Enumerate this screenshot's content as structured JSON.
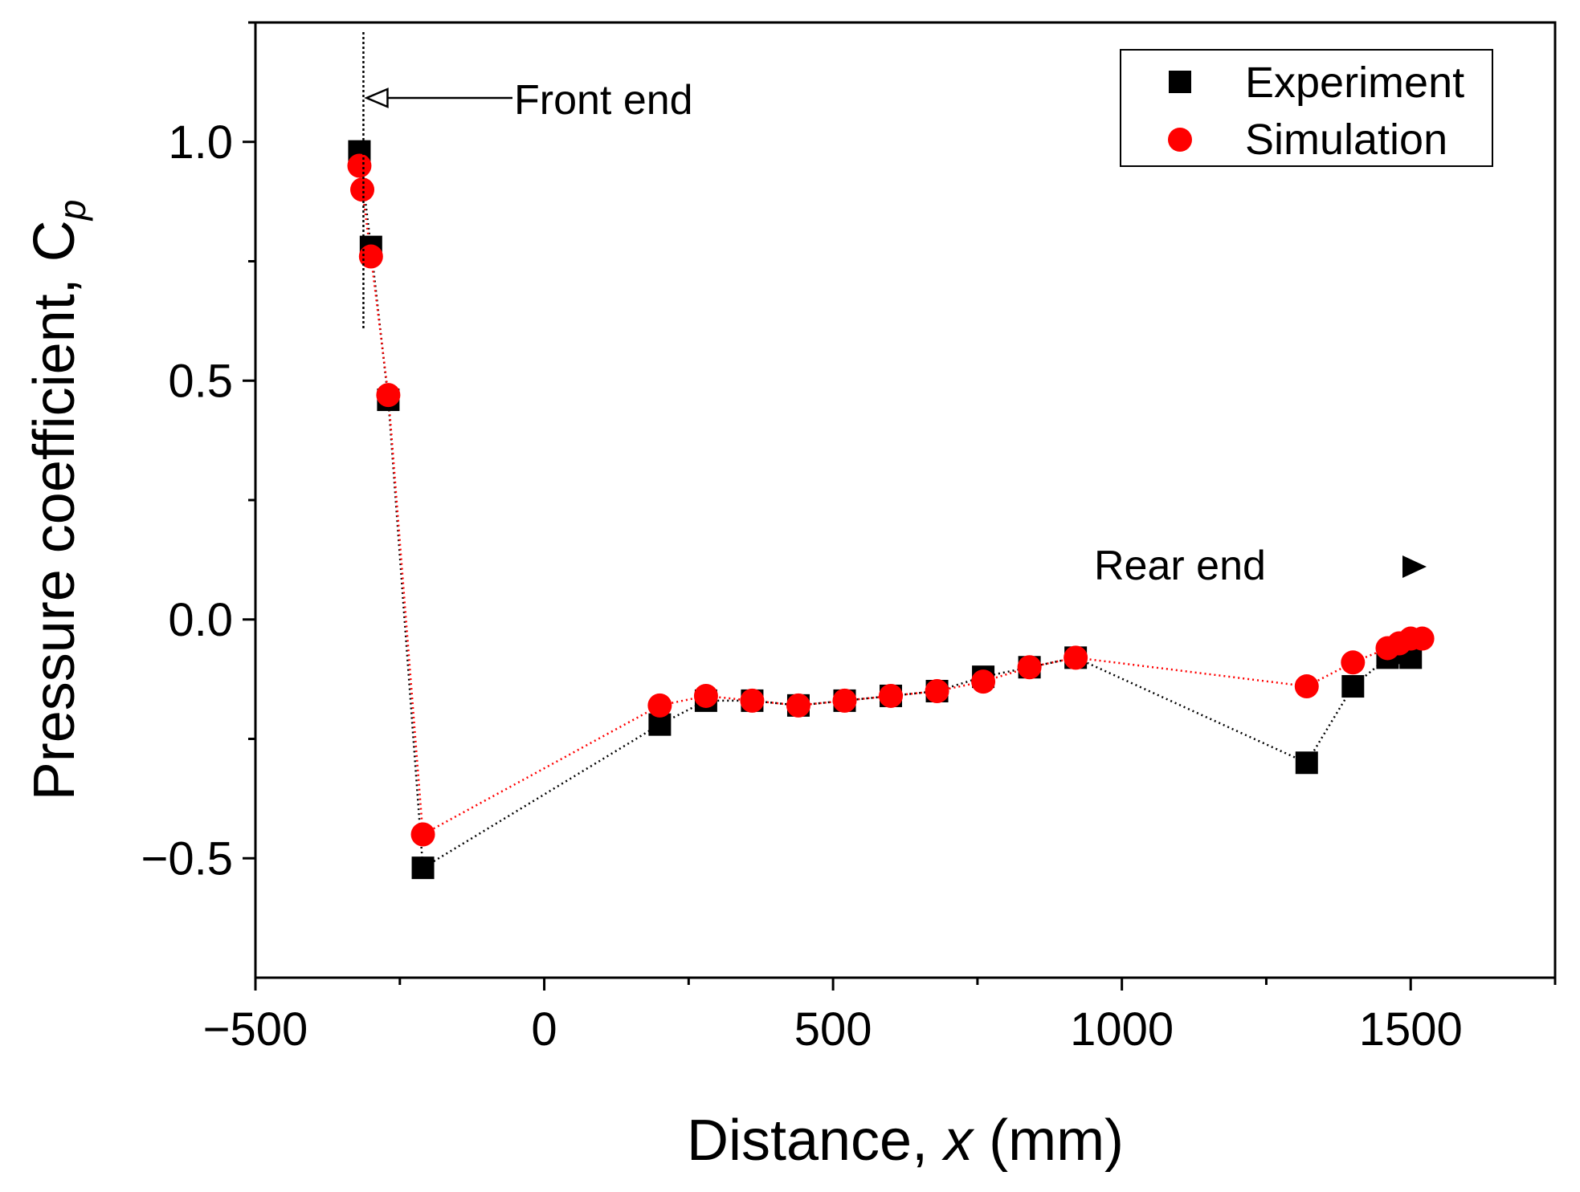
{
  "chart_data": {
    "type": "line",
    "title": "",
    "xlabel": "Distance, x (mm)",
    "xlabel_prefix": "Distance, ",
    "xlabel_var": "x",
    "xlabel_suffix": " (mm)",
    "ylabel": "Pressure coefficient, Cp",
    "ylabel_prefix": "Pressure coefficient, ",
    "ylabel_var": "C",
    "ylabel_sub": "p",
    "xlim": [
      -500,
      1750
    ],
    "ylim": [
      -0.75,
      1.25
    ],
    "xticks": [
      -500,
      0,
      500,
      1000,
      1500
    ],
    "xtick_labels": [
      "−500",
      "0",
      "500",
      "1000",
      "1500"
    ],
    "yticks": [
      -0.5,
      0.0,
      0.5,
      1.0
    ],
    "ytick_labels": [
      "−0.5",
      "0.0",
      "0.5",
      "1.0"
    ],
    "grid": false,
    "legend_position": "top-right",
    "series": [
      {
        "name": "Experiment",
        "marker": "square",
        "color": "#000000",
        "line_style": "dotted",
        "x": [
          -320,
          -300,
          -270,
          -210,
          200,
          280,
          360,
          440,
          520,
          600,
          680,
          760,
          840,
          920,
          1320,
          1400,
          1460,
          1480,
          1500
        ],
        "y": [
          0.98,
          0.78,
          0.46,
          -0.52,
          -0.22,
          -0.17,
          -0.17,
          -0.18,
          -0.17,
          -0.16,
          -0.15,
          -0.12,
          -0.1,
          -0.08,
          -0.3,
          -0.14,
          -0.08,
          -0.07,
          -0.08
        ]
      },
      {
        "name": "Simulation",
        "marker": "circle",
        "color": "#ff0000",
        "line_style": "dotted",
        "x": [
          -320,
          -315,
          -300,
          -270,
          -210,
          200,
          280,
          360,
          440,
          520,
          600,
          680,
          760,
          840,
          920,
          1320,
          1400,
          1460,
          1480,
          1500,
          1520
        ],
        "y": [
          0.95,
          0.9,
          0.76,
          0.47,
          -0.45,
          -0.18,
          -0.16,
          -0.17,
          -0.18,
          -0.17,
          -0.16,
          -0.15,
          -0.13,
          -0.1,
          -0.08,
          -0.14,
          -0.09,
          -0.06,
          -0.05,
          -0.04,
          -0.04
        ]
      }
    ],
    "annotations": {
      "front_end": {
        "text": "Front end",
        "x_ref": -320,
        "arrow_direction": "left"
      },
      "rear_end": {
        "text": "Rear end",
        "arrow_direction": "right"
      }
    }
  }
}
